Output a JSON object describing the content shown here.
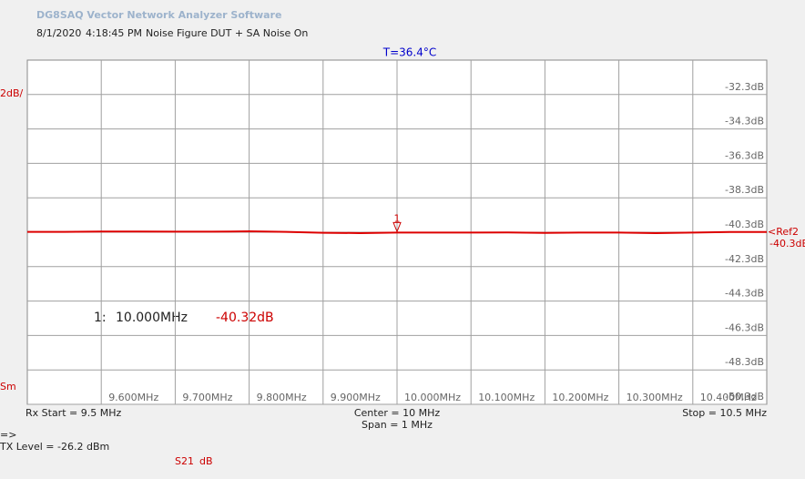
{
  "header": {
    "title": "DG8SAQ Vector Network Analyzer Software",
    "date": "8/1/2020",
    "time": "4:18:45 PM",
    "description": "Noise Figure DUT + SA Noise On",
    "temperature": "T=36.4°C"
  },
  "chart_data": {
    "type": "line",
    "scale_label": "2dB/",
    "left_bottom_label": "Sm",
    "x": [
      9.5,
      9.55,
      9.6,
      9.65,
      9.7,
      9.75,
      9.8,
      9.85,
      9.9,
      9.95,
      10.0,
      10.05,
      10.1,
      10.15,
      10.2,
      10.25,
      10.3,
      10.35,
      10.4,
      10.45,
      10.5
    ],
    "series": [
      {
        "name": "S21",
        "unit": "dB",
        "color": "#dd0000",
        "values": [
          -40.28,
          -40.28,
          -40.26,
          -40.26,
          -40.27,
          -40.27,
          -40.25,
          -40.28,
          -40.33,
          -40.35,
          -40.32,
          -40.32,
          -40.32,
          -40.31,
          -40.34,
          -40.32,
          -40.32,
          -40.35,
          -40.32,
          -40.29,
          -40.29
        ]
      }
    ],
    "xlim": [
      9.5,
      10.5
    ],
    "xticks": [
      {
        "value": 9.6,
        "label": "9.600MHz"
      },
      {
        "value": 9.7,
        "label": "9.700MHz"
      },
      {
        "value": 9.8,
        "label": "9.800MHz"
      },
      {
        "value": 9.9,
        "label": "9.900MHz"
      },
      {
        "value": 10.0,
        "label": "10.000MHz"
      },
      {
        "value": 10.1,
        "label": "10.100MHz"
      },
      {
        "value": 10.2,
        "label": "10.200MHz"
      },
      {
        "value": 10.3,
        "label": "10.300MHz"
      },
      {
        "value": 10.4,
        "label": "10.400MHz"
      }
    ],
    "ylim": [
      -50.3,
      -30.3
    ],
    "yticks": [
      {
        "value": -32.3,
        "label": "-32.3dB"
      },
      {
        "value": -34.3,
        "label": "-34.3dB"
      },
      {
        "value": -36.3,
        "label": "-36.3dB"
      },
      {
        "value": -38.3,
        "label": "-38.3dB"
      },
      {
        "value": -40.3,
        "label": "-40.3dB"
      },
      {
        "value": -42.3,
        "label": "-42.3dB"
      },
      {
        "value": -44.3,
        "label": "-44.3dB"
      },
      {
        "value": -46.3,
        "label": "-46.3dB"
      },
      {
        "value": -48.3,
        "label": "-48.3dB"
      },
      {
        "value": -50.3,
        "label": "-50.3dB"
      }
    ],
    "grid": true,
    "reference": {
      "name": "<Ref2",
      "value": -40.3,
      "label": "-40.3dB"
    },
    "marker": {
      "name": "1",
      "readout": "1:",
      "x": 10.0,
      "x_label": "10.000MHz",
      "value": -40.32,
      "value_label": "-40.32dB"
    }
  },
  "footer": {
    "start": "Rx Start = 9.5 MHz",
    "center": "Center = 10 MHz",
    "span": "Span = 1 MHz",
    "stop": "Stop = 10.5 MHz",
    "arrow": "=>",
    "tx_level": "TX Level = -26.2 dBm"
  }
}
